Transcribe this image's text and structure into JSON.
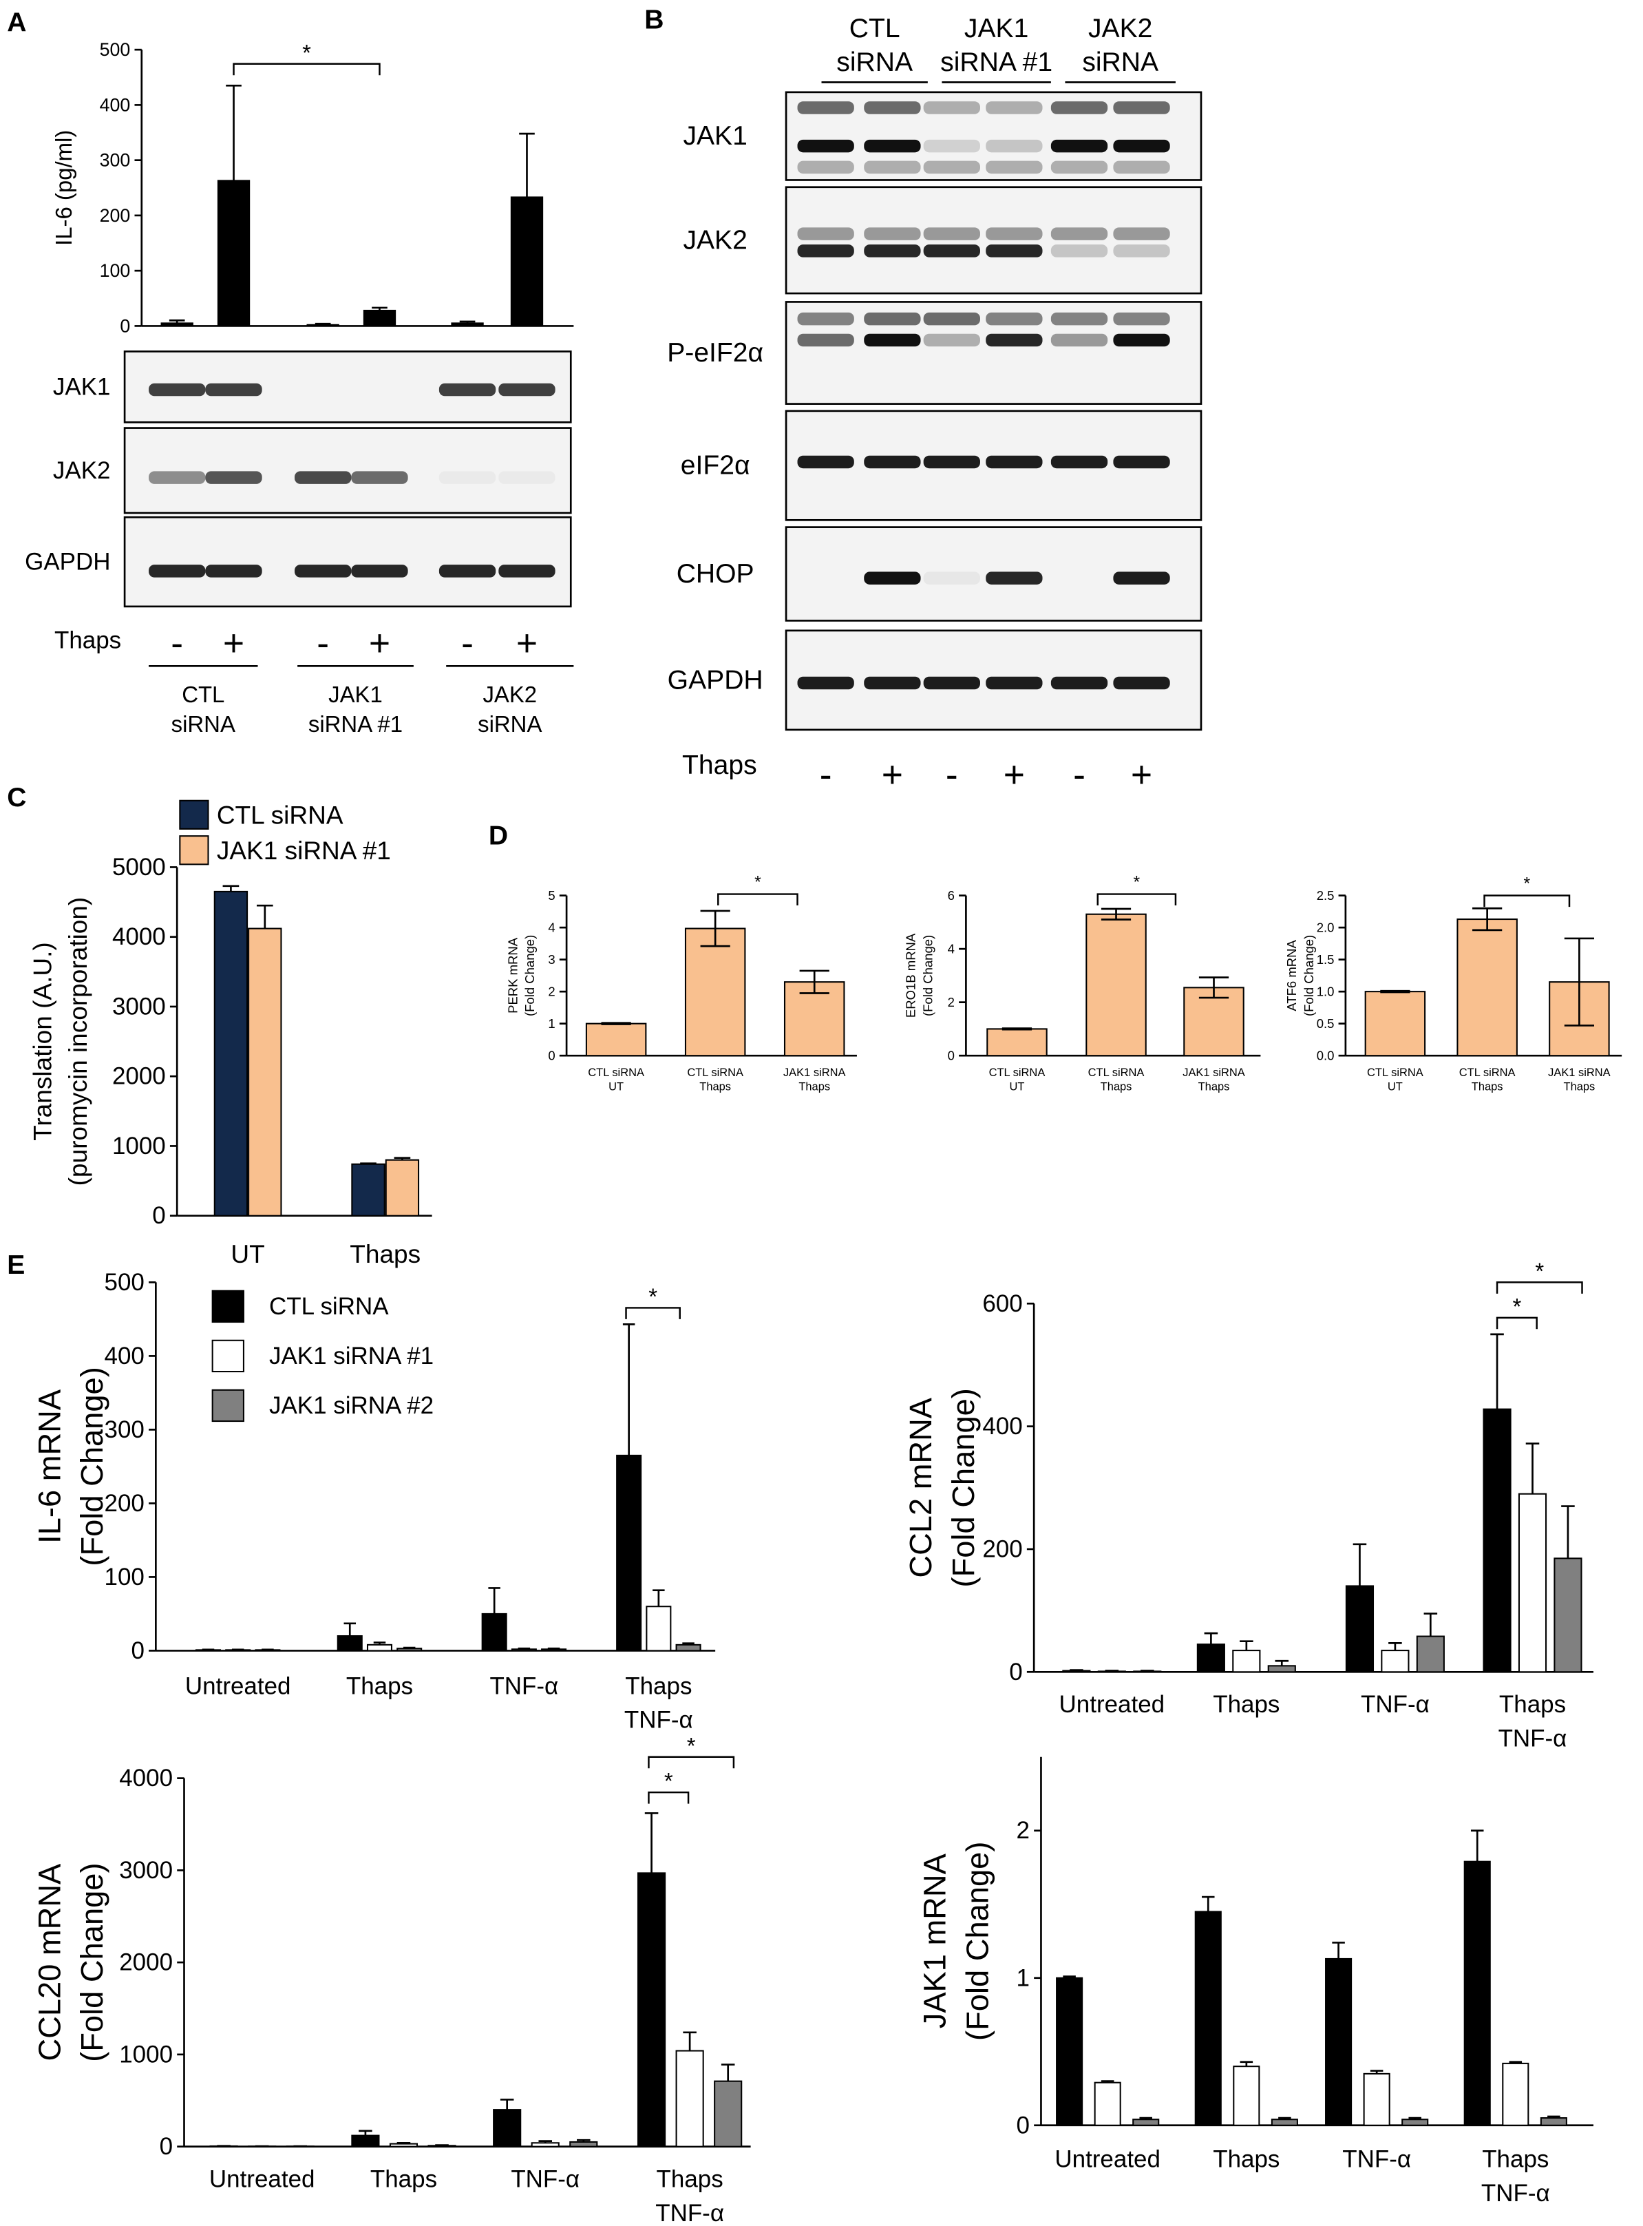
{
  "panel_labels": [
    "A",
    "B",
    "C",
    "D",
    "E"
  ],
  "blot_a": {
    "rows": [
      "JAK1",
      "JAK2",
      "GAPDH"
    ],
    "treatment": "Thaps",
    "lanes": [
      "-",
      "+",
      "-",
      "+",
      "-",
      "+"
    ],
    "groups": [
      [
        "CTL",
        "siRNA"
      ],
      [
        "JAK1",
        "siRNA #1"
      ],
      [
        "JAK2",
        "siRNA"
      ]
    ]
  },
  "blot_b": {
    "groups": [
      [
        "CTL",
        "siRNA"
      ],
      [
        "JAK1",
        "siRNA #1"
      ],
      [
        "JAK2",
        "siRNA"
      ]
    ],
    "rows": [
      "JAK1",
      "JAK2",
      "P-eIF2α",
      "eIF2α",
      "CHOP",
      "GAPDH"
    ],
    "treatment": "Thaps",
    "lanes": [
      "-",
      "+",
      "-",
      "+",
      "-",
      "+"
    ]
  },
  "chart_data": [
    {
      "type": "bar",
      "ylabel": [
        "IL-6 (pg/ml)"
      ],
      "categories": [
        null,
        null,
        null,
        null,
        null,
        null
      ],
      "series": [
        {
          "color": "#000000",
          "values": [
            5,
            263,
            2,
            28,
            5,
            233
          ],
          "errors": [
            5,
            172,
            2,
            5,
            3,
            115
          ]
        }
      ],
      "ylim": [
        0,
        500
      ],
      "yticks": [
        0,
        100,
        200,
        300,
        400,
        500
      ],
      "annotations": [
        "*"
      ]
    },
    {
      "type": "bar",
      "ylabel": [
        "Translation (A.U.)",
        "(puromycin incorporation)"
      ],
      "categories": [
        "UT",
        "Thaps"
      ],
      "series": [
        {
          "name": "CTL siRNA",
          "color": "#13294b",
          "values": [
            4650,
            740
          ],
          "errors": [
            80,
            10
          ]
        },
        {
          "name": "JAK1 siRNA #1",
          "color": "#f9c08f",
          "values": [
            4120,
            800
          ],
          "errors": [
            330,
            30
          ]
        }
      ],
      "ylim": [
        0,
        5000
      ],
      "yticks": [
        0,
        1000,
        2000,
        3000,
        4000,
        5000
      ]
    },
    {
      "type": "bar",
      "ylabel": [
        "PERK mRNA",
        "(Fold Change)"
      ],
      "categories": [
        [
          "CTL siRNA",
          "UT"
        ],
        [
          "CTL siRNA",
          "Thaps"
        ],
        [
          "JAK1 siRNA",
          "Thaps"
        ]
      ],
      "values": [
        1.0,
        3.97,
        2.3
      ],
      "errors": [
        0.02,
        0.55,
        0.35
      ],
      "color": "#f9c08f",
      "error_style": "both",
      "ylim": [
        0,
        5
      ],
      "yticks": [
        0,
        1,
        2,
        3,
        4,
        5
      ],
      "annotations": [
        "*"
      ]
    },
    {
      "type": "bar",
      "ylabel": [
        "ERO1B mRNA",
        "(Fold Change)"
      ],
      "categories": [
        [
          "CTL siRNA",
          "UT"
        ],
        [
          "CTL siRNA",
          "Thaps"
        ],
        [
          "JAK1 siRNA",
          "Thaps"
        ]
      ],
      "values": [
        1.0,
        5.3,
        2.55
      ],
      "errors": [
        0.02,
        0.2,
        0.38
      ],
      "color": "#f9c08f",
      "error_style": "both",
      "ylim": [
        0,
        6
      ],
      "yticks": [
        0,
        2,
        4,
        6
      ],
      "annotations": [
        "*"
      ]
    },
    {
      "type": "bar",
      "ylabel": [
        "ATF6 mRNA",
        "(Fold Change)"
      ],
      "categories": [
        [
          "CTL siRNA",
          "UT"
        ],
        [
          "CTL siRNA",
          "Thaps"
        ],
        [
          "JAK1 siRNA",
          "Thaps"
        ]
      ],
      "values": [
        1.0,
        2.13,
        1.15
      ],
      "errors": [
        0.01,
        0.17,
        0.68
      ],
      "color": "#f9c08f",
      "error_style": "both",
      "ylim": [
        0,
        2.5
      ],
      "yticks": [
        {
          "value": 0,
          "label": "0.0"
        },
        0.5,
        {
          "value": 1,
          "label": "1.0"
        },
        1.5,
        {
          "value": 2,
          "label": "2.0"
        },
        2.5
      ],
      "annotations": [
        "*"
      ]
    },
    {
      "type": "bar",
      "ylabel": [
        "IL-6 mRNA",
        "(Fold Change)"
      ],
      "categories": [
        "Untreated",
        "Thaps",
        "TNF-α",
        [
          "Thaps",
          "TNF-α"
        ]
      ],
      "series": [
        {
          "name": "CTL siRNA",
          "color": "#000000",
          "values": [
            1,
            20,
            50,
            265
          ],
          "errors": [
            0.5,
            17,
            35,
            178
          ]
        },
        {
          "name": "JAK1 siRNA #1",
          "color": "#ffffff",
          "values": [
            1,
            8,
            2,
            60
          ],
          "errors": [
            0.5,
            3,
            1,
            22
          ]
        },
        {
          "name": "JAK1 siRNA #2",
          "color": "#808080",
          "values": [
            1,
            3,
            2,
            8
          ],
          "errors": [
            0.5,
            1,
            1,
            2
          ]
        }
      ],
      "ylim": [
        0,
        500
      ],
      "yticks": [
        0,
        100,
        200,
        300,
        400,
        500
      ],
      "annotations": [
        "*"
      ]
    },
    {
      "type": "bar",
      "ylabel": [
        "CCL2 mRNA",
        "(Fold Change)"
      ],
      "categories": [
        "Untreated",
        "Thaps",
        "TNF-α",
        [
          "Thaps",
          "TNF-α"
        ]
      ],
      "series": [
        {
          "color": "#000000",
          "values": [
            2,
            45,
            140,
            428
          ],
          "errors": [
            1,
            18,
            68,
            122
          ]
        },
        {
          "color": "#ffffff",
          "values": [
            1,
            35,
            35,
            290
          ],
          "errors": [
            1,
            15,
            12,
            82
          ]
        },
        {
          "color": "#808080",
          "values": [
            1,
            10,
            58,
            185
          ],
          "errors": [
            1,
            8,
            37,
            85
          ]
        }
      ],
      "ylim": [
        0,
        600
      ],
      "yticks": [
        0,
        200,
        400,
        600
      ],
      "annotations": [
        "*",
        "*"
      ]
    },
    {
      "type": "bar",
      "ylabel": [
        "CCL20 mRNA",
        "(Fold Change)"
      ],
      "categories": [
        "Untreated",
        "Thaps",
        "TNF-α",
        [
          "Thaps",
          "TNF-α"
        ]
      ],
      "series": [
        {
          "color": "#000000",
          "values": [
            5,
            120,
            400,
            2970
          ],
          "errors": [
            2,
            50,
            110,
            650
          ]
        },
        {
          "color": "#ffffff",
          "values": [
            3,
            30,
            40,
            1040
          ],
          "errors": [
            1,
            10,
            20,
            200
          ]
        },
        {
          "color": "#808080",
          "values": [
            3,
            10,
            50,
            710
          ],
          "errors": [
            1,
            5,
            20,
            180
          ]
        }
      ],
      "ylim": [
        0,
        4000
      ],
      "yticks": [
        0,
        1000,
        2000,
        3000,
        4000
      ],
      "annotations": [
        "*",
        "*"
      ]
    },
    {
      "type": "bar",
      "ylabel": [
        "JAK1 mRNA",
        "(Fold Change)"
      ],
      "categories": [
        "Untreated",
        "Thaps",
        "TNF-α",
        [
          "Thaps",
          "TNF-α"
        ]
      ],
      "series": [
        {
          "color": "#000000",
          "values": [
            1.0,
            1.45,
            1.13,
            1.79
          ],
          "errors": [
            0.01,
            0.1,
            0.11,
            0.21
          ]
        },
        {
          "color": "#ffffff",
          "values": [
            0.29,
            0.4,
            0.35,
            0.42
          ],
          "errors": [
            0.01,
            0.03,
            0.02,
            0.01
          ]
        },
        {
          "color": "#808080",
          "values": [
            0.04,
            0.04,
            0.04,
            0.05
          ],
          "errors": [
            0.01,
            0.01,
            0.01,
            0.01
          ]
        }
      ],
      "ylim": [
        0,
        2.5
      ],
      "yticks": [
        0,
        1,
        2
      ]
    }
  ]
}
